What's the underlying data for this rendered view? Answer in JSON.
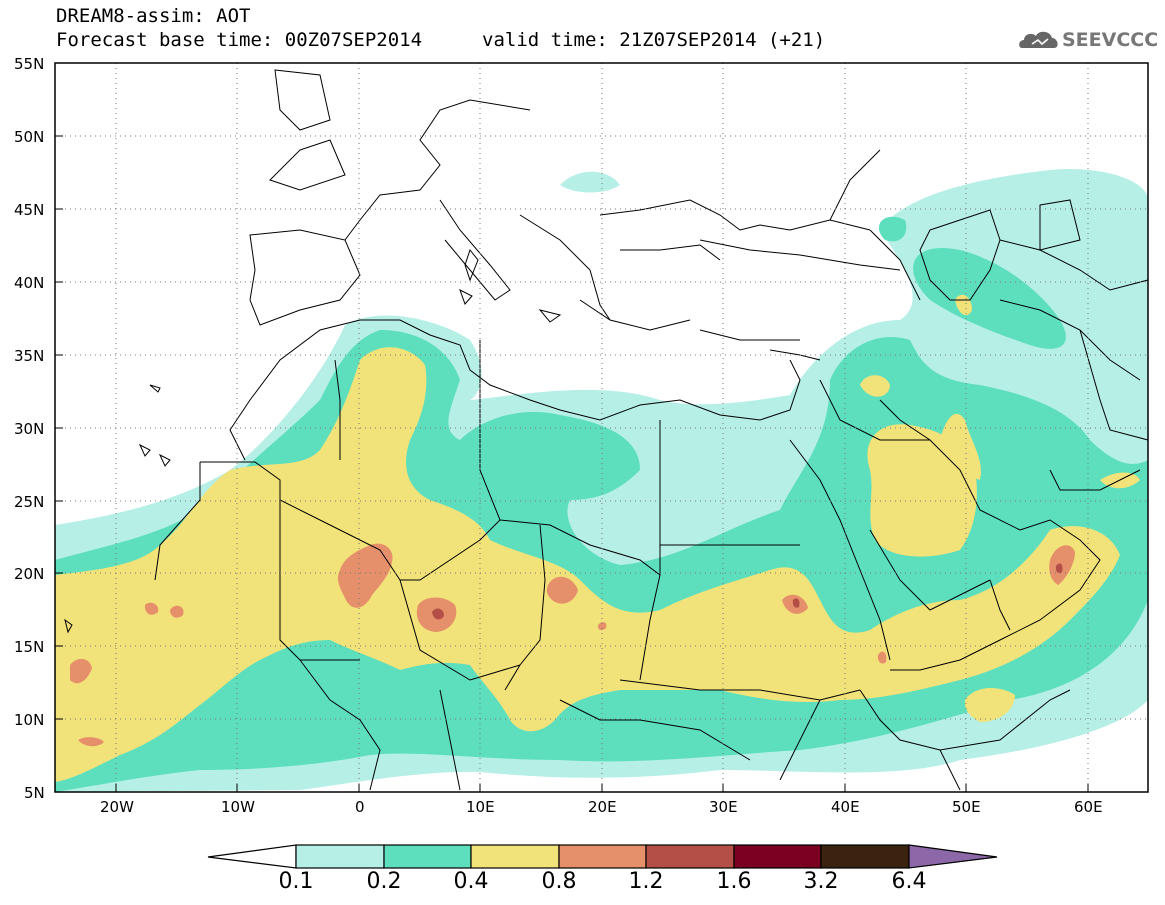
{
  "header": {
    "title": "DREAM8-assim: AOT",
    "base_time": "Forecast base time: 00Z07SEP2014",
    "valid_time": "valid time: 21Z07SEP2014 (+21)",
    "logo_text": "SEEVCCC"
  },
  "map": {
    "projection": "lat-lon",
    "lon_range": [
      -25,
      65
    ],
    "lat_range": [
      5,
      55
    ],
    "lat_labels": [
      "55N",
      "50N",
      "45N",
      "40N",
      "35N",
      "30N",
      "25N",
      "20N",
      "15N",
      "10N",
      "5N"
    ],
    "lon_labels": [
      "20W",
      "10W",
      "0",
      "10E",
      "20E",
      "30E",
      "40E",
      "50E",
      "60E"
    ],
    "gridlines": "dotted"
  },
  "colorbar": {
    "labels": [
      "0.1",
      "0.2",
      "0.4",
      "0.8",
      "1.2",
      "1.6",
      "3.2",
      "6.4"
    ],
    "colors": [
      "#b6efe6",
      "#5ddfbe",
      "#f2e27a",
      "#e6906b",
      "#b34f46",
      "#7a0022",
      "#3a2410",
      "#8c68a8"
    ],
    "low_arrow_color": "#ffffff"
  }
}
